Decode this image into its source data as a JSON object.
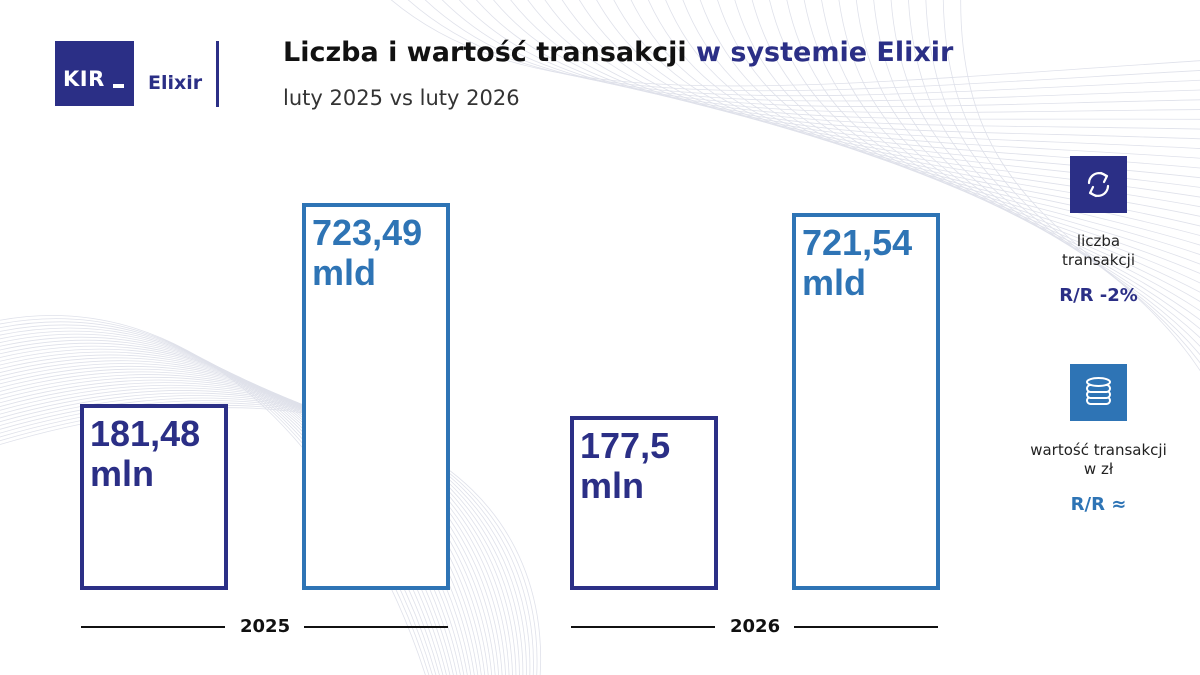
{
  "header": {
    "logo_text": "KIR",
    "brand": "Elixir",
    "title_main": "Liczba i wartość transakcji",
    "title_accent": "w systemie Elixir",
    "subtitle": "luty 2025 vs luty 2026"
  },
  "chart_data": {
    "type": "bar",
    "categories": [
      "2025",
      "2026"
    ],
    "series": [
      {
        "name": "liczba transakcji",
        "unit": "mln",
        "values": [
          181.48,
          177.5
        ],
        "labels": [
          "181,48\nmln",
          "177,5\nmln"
        ],
        "color": "#2b2f86"
      },
      {
        "name": "wartość transakcji w zł",
        "unit": "mld",
        "values": [
          723.49,
          721.54
        ],
        "labels": [
          "723,49\nmld",
          "721,54\nmld"
        ],
        "color": "#2e74b5"
      }
    ],
    "legend_placement": "right",
    "grid": false
  },
  "legend": [
    {
      "label": "liczba\ntransakcji",
      "change": "R/R -2%",
      "color": "#2b2f86",
      "icon": "exchange-arrows-icon"
    },
    {
      "label": "wartość transakcji\nw zł",
      "change": "R/R ≈",
      "color": "#2e74b5",
      "icon": "coins-stack-icon"
    }
  ]
}
